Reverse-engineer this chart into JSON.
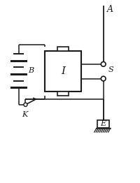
{
  "bg_color": "#ffffff",
  "line_color": "#1a1a1a",
  "fig_width": 2.0,
  "fig_height": 2.62,
  "dpi": 100,
  "label_A": "A",
  "label_B": "B",
  "label_I": "I",
  "label_K": "K",
  "label_S": "S",
  "label_E": "E",
  "xlim": [
    0,
    10
  ],
  "ylim": [
    0,
    13
  ]
}
